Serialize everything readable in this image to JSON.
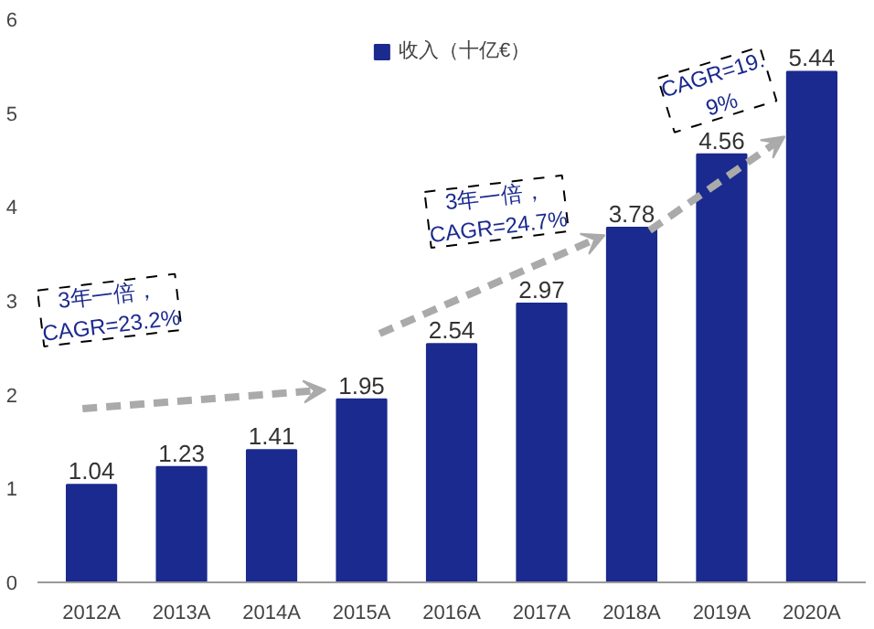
{
  "chart_data": {
    "type": "bar",
    "categories": [
      "2012A",
      "2013A",
      "2014A",
      "2015A",
      "2016A",
      "2017A",
      "2018A",
      "2019A",
      "2020A"
    ],
    "series": [
      {
        "name": "收入（十亿€）",
        "color": "#1b2a8e",
        "values": [
          1.04,
          1.23,
          1.41,
          1.95,
          2.54,
          2.97,
          3.78,
          4.56,
          5.44
        ]
      }
    ],
    "ylim": [
      0,
      6
    ],
    "yticks": [
      0,
      1,
      2,
      3,
      4,
      5,
      6
    ],
    "grid": false,
    "legend": "top",
    "data_labels": true,
    "annotations": [
      "3年一倍，\nCAGR=23.2%",
      "3年一倍，\nCAGR=24.7%",
      "CAGR=19.\n9%"
    ]
  }
}
